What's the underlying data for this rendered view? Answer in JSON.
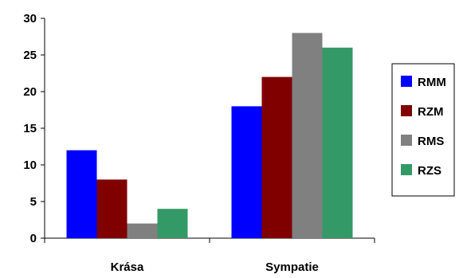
{
  "chart_data": {
    "type": "bar",
    "categories": [
      "Krása",
      "Sympatie"
    ],
    "series": [
      {
        "name": "RMM",
        "values": [
          12,
          18
        ],
        "color": "#0000ff"
      },
      {
        "name": "RZM",
        "values": [
          8,
          22
        ],
        "color": "#800000"
      },
      {
        "name": "RMS",
        "values": [
          2,
          28
        ],
        "color": "#808080"
      },
      {
        "name": "RZS",
        "values": [
          4,
          26
        ],
        "color": "#339966"
      }
    ],
    "title": "",
    "xlabel": "",
    "ylabel": "",
    "ylim": [
      0,
      30
    ],
    "yticks": [
      "0",
      "5",
      "10",
      "15",
      "20",
      "25",
      "30"
    ],
    "grid": false,
    "legend_position": "right"
  }
}
